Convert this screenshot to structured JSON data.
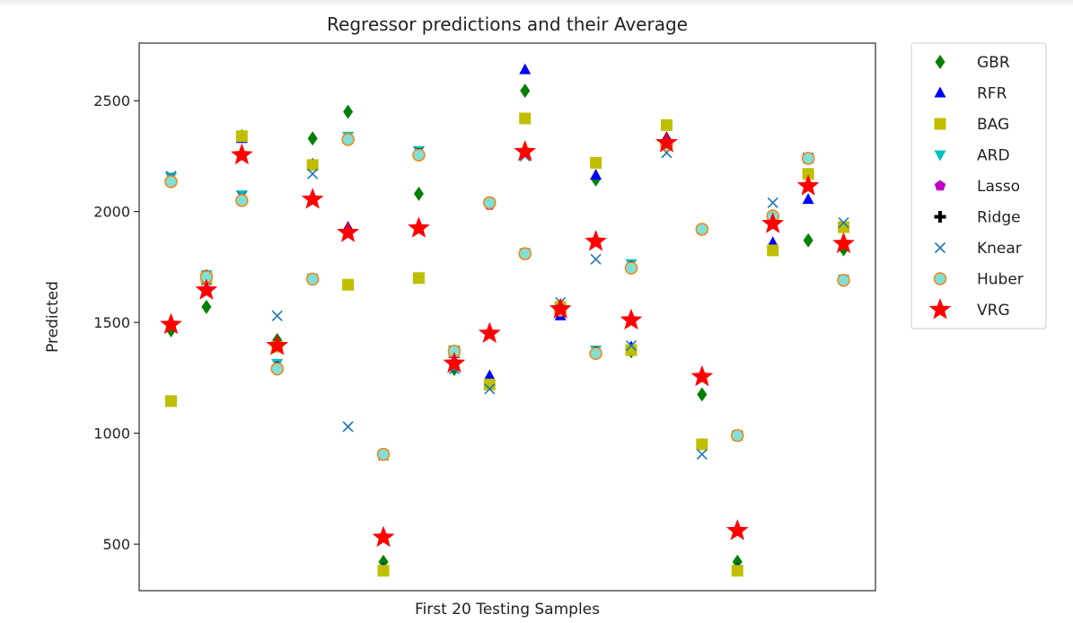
{
  "chart_data": {
    "type": "scatter",
    "title": "Regressor predictions and their Average",
    "xlabel": "First 20 Testing Samples",
    "ylabel": "Predicted",
    "x": [
      1,
      2,
      3,
      4,
      5,
      6,
      7,
      8,
      9,
      10,
      11,
      12,
      13,
      14,
      15,
      16,
      17,
      18,
      19,
      20
    ],
    "xlim": [
      0.1,
      20.9
    ],
    "ylim": [
      290,
      2760
    ],
    "yticks": [
      500,
      1000,
      1500,
      2000,
      2500
    ],
    "grid": false,
    "legend_position": "outside-right",
    "series": [
      {
        "name": "GBR",
        "marker": "diamond",
        "color": "#008000",
        "values": [
          1465,
          1570,
          2340,
          1420,
          2330,
          2450,
          420,
          2080,
          1290,
          1230,
          2545,
          1545,
          2145,
          1370,
          2320,
          1175,
          420,
          1980,
          1870,
          1830
        ]
      },
      {
        "name": "RFR",
        "marker": "triangle-up",
        "color": "#0000ff",
        "values": [
          1145,
          1700,
          2330,
          1390,
          2215,
          1930,
          390,
          1700,
          1360,
          1260,
          2640,
          1530,
          2165,
          1390,
          2335,
          950,
          390,
          1860,
          2055,
          1930
        ]
      },
      {
        "name": "BAG",
        "marker": "square",
        "color": "#bfbf00",
        "values": [
          1145,
          1700,
          2340,
          1390,
          2210,
          1670,
          380,
          1700,
          1370,
          1220,
          2420,
          1570,
          2220,
          1375,
          2390,
          950,
          380,
          1825,
          2170,
          1930
        ]
      },
      {
        "name": "ARD",
        "marker": "triangle-down",
        "color": "#00bfbf",
        "values": [
          2155,
          1715,
          2075,
          1315,
          1700,
          2340,
          905,
          2275,
          1375,
          2040,
          1815,
          1560,
          1375,
          1765,
          2300,
          1920,
          990,
          1960,
          2245,
          1695
        ]
      },
      {
        "name": "Lasso",
        "marker": "pentagon",
        "color": "#bf00bf",
        "values": [
          2140,
          1710,
          2050,
          1300,
          1695,
          2325,
          905,
          2260,
          1370,
          2030,
          1805,
          1550,
          1365,
          1750,
          2300,
          1915,
          990,
          1975,
          2235,
          1690
        ]
      },
      {
        "name": "Ridge",
        "marker": "plus",
        "color": "#000000",
        "values": [
          2140,
          1710,
          2050,
          1295,
          1695,
          2325,
          905,
          2260,
          1370,
          2035,
          1810,
          1555,
          1365,
          1750,
          2300,
          1920,
          990,
          1975,
          2240,
          1690
        ]
      },
      {
        "name": "Knear",
        "marker": "x",
        "color": "#1f77b4",
        "values": [
          2160,
          1690,
          2070,
          1530,
          2170,
          1030,
          900,
          2270,
          1290,
          1200,
          2250,
          1590,
          1785,
          1395,
          2265,
          905,
          990,
          2040,
          2240,
          1950
        ]
      },
      {
        "name": "Huber",
        "marker": "circle-open",
        "color": "#ff7f0e",
        "values": [
          2135,
          1705,
          2050,
          1290,
          1695,
          2325,
          905,
          2255,
          1370,
          2040,
          1810,
          1555,
          1360,
          1745,
          2300,
          1920,
          990,
          1980,
          2240,
          1690
        ]
      },
      {
        "name": "VRG",
        "marker": "star",
        "color": "#ff0000",
        "values": [
          1490,
          1645,
          2255,
          1395,
          2055,
          1905,
          530,
          1925,
          1315,
          1450,
          2270,
          1560,
          1865,
          1510,
          2310,
          1255,
          560,
          1945,
          2115,
          1855
        ]
      }
    ]
  }
}
